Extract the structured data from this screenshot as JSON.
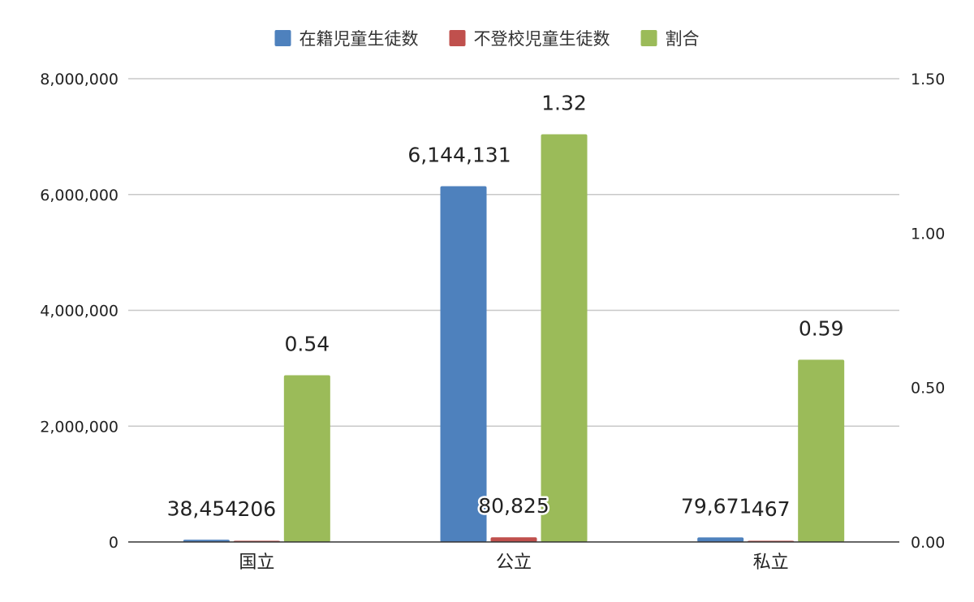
{
  "chart_data": {
    "type": "bar",
    "categories": [
      "国立",
      "公立",
      "私立"
    ],
    "series": [
      {
        "name": "在籍児童生徒数",
        "values": [
          38454,
          6144131,
          79671
        ],
        "labels": [
          "38,454",
          "6,144,131",
          "79,671"
        ],
        "axis": "left",
        "color": "#4e81bd"
      },
      {
        "name": "不登校児童生徒数",
        "values": [
          206,
          80825,
          467
        ],
        "labels": [
          "206",
          "80,825",
          "467"
        ],
        "axis": "left",
        "color": "#c0504d"
      },
      {
        "name": "割合",
        "values": [
          0.54,
          1.32,
          0.59
        ],
        "labels": [
          "0.54",
          "1.32",
          "0.59"
        ],
        "axis": "right",
        "color": "#9bbb59"
      }
    ],
    "left_axis": {
      "ylim": [
        0,
        8000000
      ],
      "ticks": [
        "0",
        "2,000,000",
        "4,000,000",
        "6,000,000",
        "8,000,000"
      ]
    },
    "right_axis": {
      "ylim": [
        0,
        1.5
      ],
      "ticks": [
        "0.00",
        "0.50",
        "1.00",
        "1.50"
      ]
    },
    "legend_position": "top-center",
    "grid": true
  }
}
